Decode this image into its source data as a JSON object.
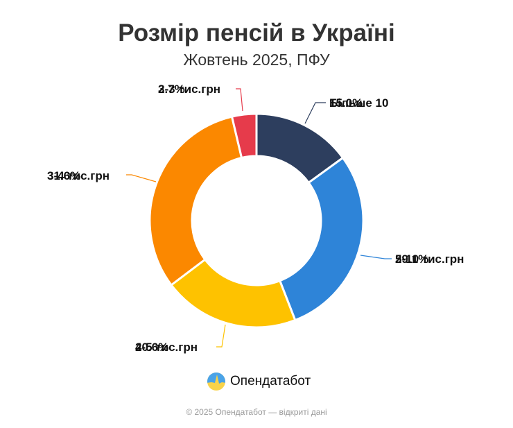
{
  "header": {
    "title": "Розмір пенсій в Україні",
    "subtitle": "Жовтень 2025, ПФУ"
  },
  "chart_data": {
    "type": "pie",
    "variant": "donut",
    "title": "Розмір пенсій в Україні",
    "subtitle": "Жовтень 2025, ПФУ",
    "categories": [
      "Більше 10 тис.грн",
      "5-10 тис.грн",
      "4-5 тис.грн",
      "3-4 тис.грн",
      "2-3 тис.грн"
    ],
    "values": [
      15.0,
      29.1,
      20.6,
      31.6,
      3.7
    ],
    "unit": "%",
    "colors": [
      "#2d3e5e",
      "#2e84d8",
      "#fec200",
      "#fb8800",
      "#e63b4b"
    ]
  },
  "labels": [
    {
      "cat": "Більше 10",
      "pct": "15.0%"
    },
    {
      "cat": "5-10 тис.грн",
      "pct": "29.1%"
    },
    {
      "cat": "4-5 тис.грн",
      "pct": "20.6%"
    },
    {
      "cat": "3-4 тис.грн",
      "pct": "31.6%"
    },
    {
      "cat": "2-3 тис.грн",
      "pct": "3.7%"
    }
  ],
  "brand": {
    "name": "Опендатабот"
  },
  "footer": {
    "text": "© 2025 Опендатабот — відкриті дані"
  }
}
